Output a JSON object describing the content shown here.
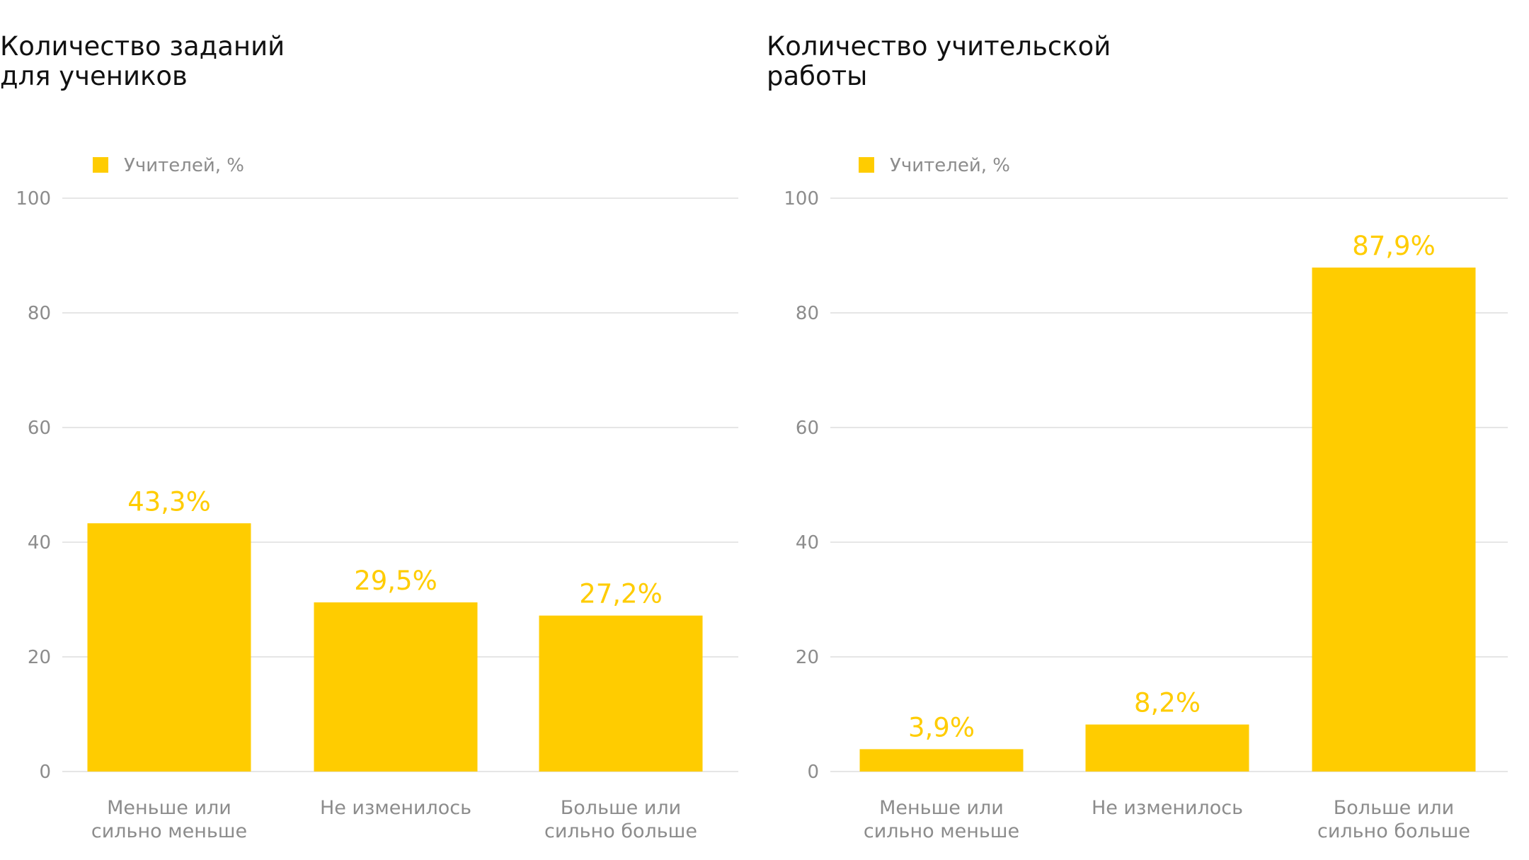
{
  "colors": {
    "bar": "#FFCC00",
    "label": "#FFCC00",
    "axis_text": "#8C8C8C",
    "grid": "#E6E6E6",
    "title": "#111111"
  },
  "chart_data": [
    {
      "type": "bar",
      "title": "Количество заданий для учеников",
      "title_lines": [
        "Количество заданий",
        "для учеников"
      ],
      "legend": [
        "Учителей, %"
      ],
      "legend_placement": "top-left",
      "grid": true,
      "categories": [
        "Меньше или сильно меньше",
        "Не изменилось",
        "Больше или сильно больше"
      ],
      "category_lines": [
        [
          "Меньше или",
          "сильно меньше"
        ],
        [
          "Не изменилось"
        ],
        [
          "Больше или",
          "сильно больше"
        ]
      ],
      "series": [
        {
          "name": "Учителей, %",
          "values": [
            43.3,
            29.5,
            27.2
          ]
        }
      ],
      "data_labels": [
        "43,3%",
        "29,5%",
        "27,2%"
      ],
      "yticks": [
        0,
        20,
        40,
        60,
        80,
        100
      ],
      "ylim": [
        0,
        100
      ],
      "xlabel": "",
      "ylabel": ""
    },
    {
      "type": "bar",
      "title": "Количество учительской работы",
      "title_lines": [
        "Количество учительской",
        "работы"
      ],
      "legend": [
        "Учителей, %"
      ],
      "legend_placement": "top-left",
      "grid": true,
      "categories": [
        "Меньше или сильно меньше",
        "Не изменилось",
        "Больше или сильно больше"
      ],
      "category_lines": [
        [
          "Меньше или",
          "сильно меньше"
        ],
        [
          "Не изменилось"
        ],
        [
          "Больше или",
          "сильно больше"
        ]
      ],
      "series": [
        {
          "name": "Учителей, %",
          "values": [
            3.9,
            8.2,
            87.9
          ]
        }
      ],
      "data_labels": [
        "3,9%",
        "8,2%",
        "87,9%"
      ],
      "yticks": [
        0,
        20,
        40,
        60,
        80,
        100
      ],
      "ylim": [
        0,
        100
      ],
      "xlabel": "",
      "ylabel": ""
    }
  ]
}
